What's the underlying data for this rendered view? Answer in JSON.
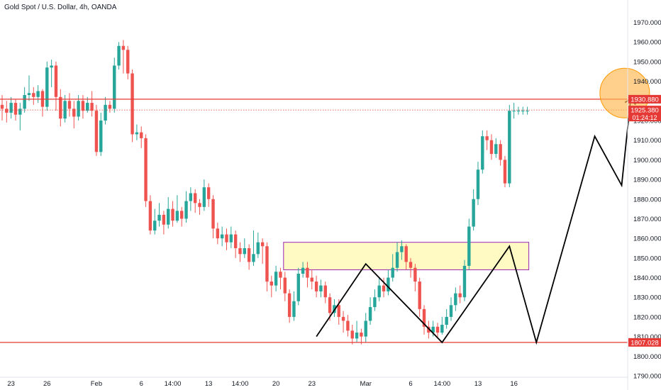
{
  "title": "Gold Spot / U.S. Dollar, 4h, OANDA",
  "colors": {
    "up": "#26a69a",
    "down": "#ef5350",
    "hline": "#e53935",
    "zone_fill": "#fff9c4",
    "zone_border": "#9c27b0",
    "circle_fill": "#ffb74d",
    "circle_stroke": "#ff9800",
    "path": "#000000",
    "price_tag": "#e53935"
  },
  "price_tags": [
    {
      "label": "1930.880",
      "value": 1930.88
    },
    {
      "label": "1925.380",
      "value": 1925.38,
      "sub": "01:24:12"
    },
    {
      "label": "1807.028",
      "value": 1807.028
    }
  ],
  "chart_data": {
    "type": "candlestick",
    "title": "Gold Spot / U.S. Dollar, 4h, OANDA",
    "ylim": [
      1790,
      1972
    ],
    "yticks": [
      "1970.000",
      "1960.000",
      "1950.000",
      "1940.000",
      "1930.000",
      "1920.000",
      "1910.000",
      "1900.000",
      "1890.000",
      "1880.000",
      "1870.000",
      "1860.000",
      "1850.000",
      "1840.000",
      "1830.000",
      "1820.000",
      "1810.000",
      "1800.000",
      "1790.000"
    ],
    "ytick_values": [
      1970,
      1960,
      1950,
      1940,
      1930,
      1920,
      1910,
      1900,
      1890,
      1880,
      1870,
      1860,
      1850,
      1840,
      1830,
      1820,
      1810,
      1800,
      1790
    ],
    "xticks": [
      "23",
      "26",
      "Feb",
      "6",
      "14:00",
      "13",
      "14:00",
      "20",
      "23",
      "Mar",
      "6",
      "14:00",
      "13",
      "16"
    ],
    "xtick_index": [
      2,
      10,
      21,
      31,
      38,
      46,
      53,
      61,
      69,
      81,
      91,
      98,
      106,
      114
    ],
    "bar_count": 118,
    "candles": [
      [
        1928,
        1926,
        1933,
        1920
      ],
      [
        1926,
        1924,
        1930,
        1919
      ],
      [
        1924,
        1929,
        1932,
        1921
      ],
      [
        1929,
        1923,
        1931,
        1920
      ],
      [
        1923,
        1926,
        1929,
        1915
      ],
      [
        1926,
        1933,
        1937,
        1924
      ],
      [
        1933,
        1934,
        1943,
        1930
      ],
      [
        1934,
        1932,
        1937,
        1928
      ],
      [
        1932,
        1935,
        1938,
        1929
      ],
      [
        1935,
        1927,
        1936,
        1922
      ],
      [
        1927,
        1947,
        1950,
        1925
      ],
      [
        1947,
        1948,
        1951,
        1937
      ],
      [
        1948,
        1932,
        1950,
        1925
      ],
      [
        1932,
        1921,
        1936,
        1917
      ],
      [
        1921,
        1930,
        1933,
        1919
      ],
      [
        1930,
        1926,
        1934,
        1922
      ],
      [
        1926,
        1922,
        1930,
        1916
      ],
      [
        1922,
        1930,
        1933,
        1920
      ],
      [
        1930,
        1925,
        1933,
        1921
      ],
      [
        1925,
        1929,
        1932,
        1924
      ],
      [
        1929,
        1925,
        1935,
        1922
      ],
      [
        1925,
        1904,
        1928,
        1902
      ],
      [
        1904,
        1920,
        1924,
        1902
      ],
      [
        1920,
        1928,
        1932,
        1918
      ],
      [
        1928,
        1926,
        1930,
        1924
      ],
      [
        1926,
        1948,
        1952,
        1924
      ],
      [
        1948,
        1958,
        1960,
        1946
      ],
      [
        1958,
        1956,
        1961,
        1944
      ],
      [
        1956,
        1944,
        1958,
        1941
      ],
      [
        1944,
        1913,
        1946,
        1909
      ],
      [
        1913,
        1914,
        1918,
        1910
      ],
      [
        1914,
        1911,
        1917,
        1906
      ],
      [
        1911,
        1879,
        1913,
        1876
      ],
      [
        1879,
        1864,
        1882,
        1862
      ],
      [
        1864,
        1869,
        1875,
        1862
      ],
      [
        1869,
        1872,
        1878,
        1866
      ],
      [
        1872,
        1867,
        1874,
        1862
      ],
      [
        1867,
        1875,
        1881,
        1865
      ],
      [
        1875,
        1869,
        1879,
        1866
      ],
      [
        1869,
        1874,
        1882,
        1868
      ],
      [
        1874,
        1870,
        1876,
        1866
      ],
      [
        1870,
        1879,
        1884,
        1868
      ],
      [
        1879,
        1883,
        1886,
        1874
      ],
      [
        1883,
        1878,
        1885,
        1873
      ],
      [
        1878,
        1876,
        1880,
        1872
      ],
      [
        1876,
        1886,
        1890,
        1874
      ],
      [
        1886,
        1880,
        1888,
        1876
      ],
      [
        1880,
        1865,
        1882,
        1860
      ],
      [
        1865,
        1860,
        1868,
        1857
      ],
      [
        1860,
        1862,
        1866,
        1856
      ],
      [
        1862,
        1858,
        1865,
        1854
      ],
      [
        1858,
        1862,
        1866,
        1855
      ],
      [
        1862,
        1855,
        1864,
        1850
      ],
      [
        1855,
        1852,
        1858,
        1848
      ],
      [
        1852,
        1855,
        1860,
        1850
      ],
      [
        1855,
        1848,
        1857,
        1844
      ],
      [
        1848,
        1852,
        1864,
        1846
      ],
      [
        1852,
        1858,
        1863,
        1850
      ],
      [
        1858,
        1856,
        1860,
        1847
      ],
      [
        1856,
        1838,
        1858,
        1833
      ],
      [
        1838,
        1836,
        1841,
        1830
      ],
      [
        1836,
        1843,
        1846,
        1833
      ],
      [
        1843,
        1840,
        1845,
        1834
      ],
      [
        1840,
        1832,
        1843,
        1828
      ],
      [
        1832,
        1820,
        1834,
        1817
      ],
      [
        1820,
        1828,
        1833,
        1818
      ],
      [
        1828,
        1842,
        1845,
        1826
      ],
      [
        1842,
        1845,
        1848,
        1840
      ],
      [
        1845,
        1840,
        1848,
        1835
      ],
      [
        1840,
        1838,
        1844,
        1834
      ],
      [
        1838,
        1833,
        1841,
        1830
      ],
      [
        1833,
        1836,
        1839,
        1830
      ],
      [
        1836,
        1830,
        1838,
        1827
      ],
      [
        1830,
        1822,
        1832,
        1818
      ],
      [
        1822,
        1826,
        1829,
        1820
      ],
      [
        1826,
        1820,
        1829,
        1816
      ],
      [
        1820,
        1818,
        1823,
        1812
      ],
      [
        1818,
        1813,
        1821,
        1810
      ],
      [
        1813,
        1809,
        1816,
        1806
      ],
      [
        1809,
        1812,
        1818,
        1807
      ],
      [
        1812,
        1810,
        1814,
        1806
      ],
      [
        1810,
        1818,
        1822,
        1807
      ],
      [
        1818,
        1825,
        1830,
        1816
      ],
      [
        1825,
        1830,
        1834,
        1823
      ],
      [
        1830,
        1836,
        1840,
        1828
      ],
      [
        1836,
        1833,
        1840,
        1830
      ],
      [
        1833,
        1840,
        1844,
        1831
      ],
      [
        1840,
        1845,
        1852,
        1838
      ],
      [
        1845,
        1853,
        1858,
        1843
      ],
      [
        1853,
        1856,
        1859,
        1849
      ],
      [
        1856,
        1848,
        1857,
        1844
      ],
      [
        1848,
        1845,
        1850,
        1840
      ],
      [
        1845,
        1838,
        1847,
        1833
      ],
      [
        1838,
        1824,
        1840,
        1820
      ],
      [
        1824,
        1815,
        1826,
        1811
      ],
      [
        1815,
        1812,
        1818,
        1809
      ],
      [
        1812,
        1815,
        1818,
        1810
      ],
      [
        1815,
        1812,
        1817,
        1809
      ],
      [
        1812,
        1816,
        1820,
        1811
      ],
      [
        1816,
        1820,
        1824,
        1814
      ],
      [
        1820,
        1826,
        1830,
        1818
      ],
      [
        1826,
        1832,
        1835,
        1823
      ],
      [
        1832,
        1830,
        1836,
        1827
      ],
      [
        1830,
        1846,
        1849,
        1828
      ],
      [
        1846,
        1866,
        1870,
        1844
      ],
      [
        1866,
        1880,
        1885,
        1864
      ],
      [
        1880,
        1895,
        1899,
        1877
      ],
      [
        1895,
        1912,
        1915,
        1893
      ],
      [
        1912,
        1910,
        1915,
        1905
      ],
      [
        1910,
        1903,
        1913,
        1900
      ],
      [
        1903,
        1908,
        1911,
        1901
      ],
      [
        1908,
        1900,
        1910,
        1897
      ],
      [
        1900,
        1888,
        1902,
        1886
      ],
      [
        1888,
        1925,
        1928,
        1886
      ],
      [
        1925,
        1925,
        1929,
        1921
      ],
      [
        1925,
        1925,
        1927,
        1923
      ],
      [
        1925,
        1925,
        1927,
        1923
      ],
      [
        1925,
        1925,
        1927,
        1923
      ]
    ],
    "hlines": [
      1930.88,
      1807.028
    ],
    "dotted_line": 1925.38,
    "zone": {
      "from_bar": 63,
      "to_bar": 117,
      "top": 1858,
      "bottom": 1844
    },
    "pattern_path": [
      [
        70,
        1810
      ],
      [
        81,
        1847
      ],
      [
        98,
        1807
      ],
      [
        113,
        1856
      ],
      [
        119,
        1807
      ],
      [
        132,
        1912
      ],
      [
        138,
        1887
      ],
      [
        140,
        1931
      ]
    ],
    "highlight_circle": {
      "bar": 139,
      "value": 1934
    }
  }
}
